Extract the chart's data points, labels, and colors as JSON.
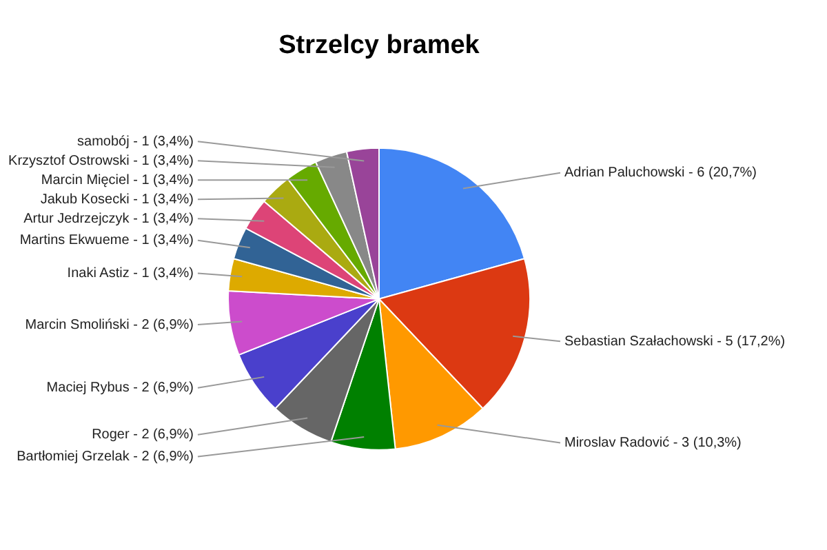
{
  "chart_data": {
    "type": "pie",
    "title": "Strzelcy bramek",
    "categories": [
      "Adrian Paluchowski",
      "Sebastian Szałachowski",
      "Miroslav Radović",
      "Bartłomiej Grzelak",
      "Roger",
      "Maciej Rybus",
      "Marcin Smoliński",
      "Inaki Astiz",
      "Martins Ekwueme",
      "Artur Jedrzejczyk",
      "Jakub Kosecki",
      "Marcin Mięciel",
      "Krzysztof Ostrowski",
      "samobój"
    ],
    "values": [
      6,
      5,
      3,
      2,
      2,
      2,
      2,
      1,
      1,
      1,
      1,
      1,
      1,
      1
    ],
    "value_labels": [
      "6 (20,7%)",
      "5 (17,2%)",
      "3 (10,3%)",
      "2 (6,9%)",
      "2 (6,9%)",
      "2 (6,9%)",
      "2 (6,9%)",
      "1 (3,4%)",
      "1 (3,4%)",
      "1 (3,4%)",
      "1 (3,4%)",
      "1 (3,4%)",
      "1 (3,4%)",
      "1 (3,4%)"
    ],
    "colors": [
      "#4285f4",
      "#dc3912",
      "#ff9900",
      "#008000",
      "#666666",
      "#4a40cc",
      "#cc4ccc",
      "#ddaa00",
      "#316395",
      "#dd4477",
      "#aaaa11",
      "#66aa00",
      "#888888",
      "#994499"
    ]
  }
}
